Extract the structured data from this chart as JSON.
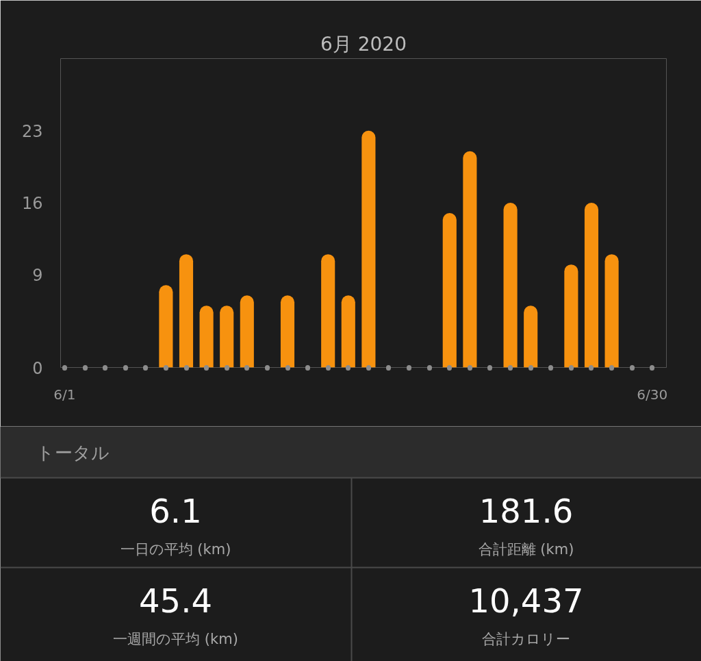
{
  "chart_data": [
    {
      "type": "bar",
      "title": "6月 2020",
      "categories": [
        "6/1",
        null,
        null,
        null,
        null,
        null,
        null,
        null,
        null,
        null,
        null,
        null,
        null,
        null,
        null,
        null,
        null,
        null,
        null,
        null,
        null,
        null,
        null,
        null,
        null,
        null,
        null,
        null,
        null,
        "6/30"
      ],
      "values": [
        null,
        null,
        null,
        null,
        null,
        8,
        11,
        6,
        6,
        7,
        null,
        7,
        null,
        11,
        7,
        23,
        null,
        null,
        null,
        15,
        21,
        null,
        16,
        6,
        null,
        10,
        16,
        11,
        null,
        null
      ],
      "color": "#f7920f",
      "ylim": [
        0,
        30
      ],
      "yticks": [
        0,
        9,
        16,
        23
      ],
      "grid": false
    },
    {
      "type": "other",
      "title": "トータル",
      "annotations": [
        "6.1",
        "一日の平均 (km)",
        "181.6",
        "合計距離 (km)",
        "45.4",
        "一週間の平均 (km)",
        "10,437",
        "合計カロリー"
      ]
    }
  ]
}
